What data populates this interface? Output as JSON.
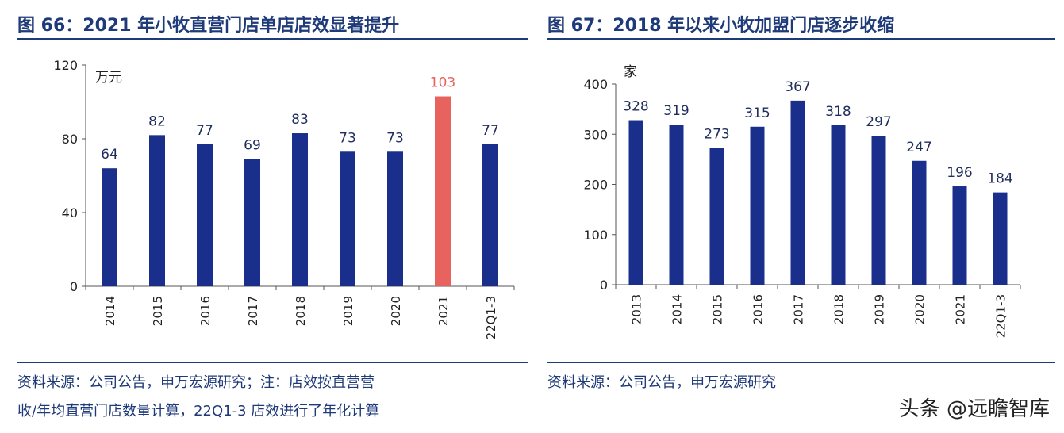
{
  "left": {
    "figure_title": "图 66：2021 年小牧直营门店单店店效显著提升",
    "source_lines": [
      "资料来源：公司公告，申万宏源研究；注：店效按直营营",
      "收/年均直营门店数量计算，22Q1-3 店效进行了年化计算"
    ]
  },
  "right": {
    "figure_title": "图 67：2018 年以来小牧加盟门店逐步收缩",
    "source_lines": [
      "资料来源：公司公告，申万宏源研究"
    ]
  },
  "watermark": "头条 @远瞻智库",
  "chart_data": [
    {
      "type": "bar",
      "unit": "万元",
      "categories": [
        "2014",
        "2015",
        "2016",
        "2017",
        "2018",
        "2019",
        "2020",
        "2021",
        "22Q1-3"
      ],
      "values": [
        64,
        82,
        77,
        69,
        83,
        73,
        73,
        103,
        77
      ],
      "ylim": [
        0,
        120
      ],
      "yticks": [
        0,
        40,
        80,
        120
      ],
      "bar_color": "#1a2f8c",
      "highlight_color": "#e8625e",
      "highlight_index": 7,
      "label_colors": {
        "normal": "#1f2d5c",
        "highlight": "#e8625e"
      }
    },
    {
      "type": "bar",
      "unit": "家",
      "categories": [
        "2013",
        "2014",
        "2015",
        "2016",
        "2017",
        "2018",
        "2019",
        "2020",
        "2021",
        "22Q1-3"
      ],
      "values": [
        328,
        319,
        273,
        315,
        367,
        318,
        297,
        247,
        196,
        184
      ],
      "ylim": [
        0,
        400
      ],
      "yticks": [
        0,
        100,
        200,
        300,
        400
      ],
      "bar_color": "#1a2f8c"
    }
  ]
}
